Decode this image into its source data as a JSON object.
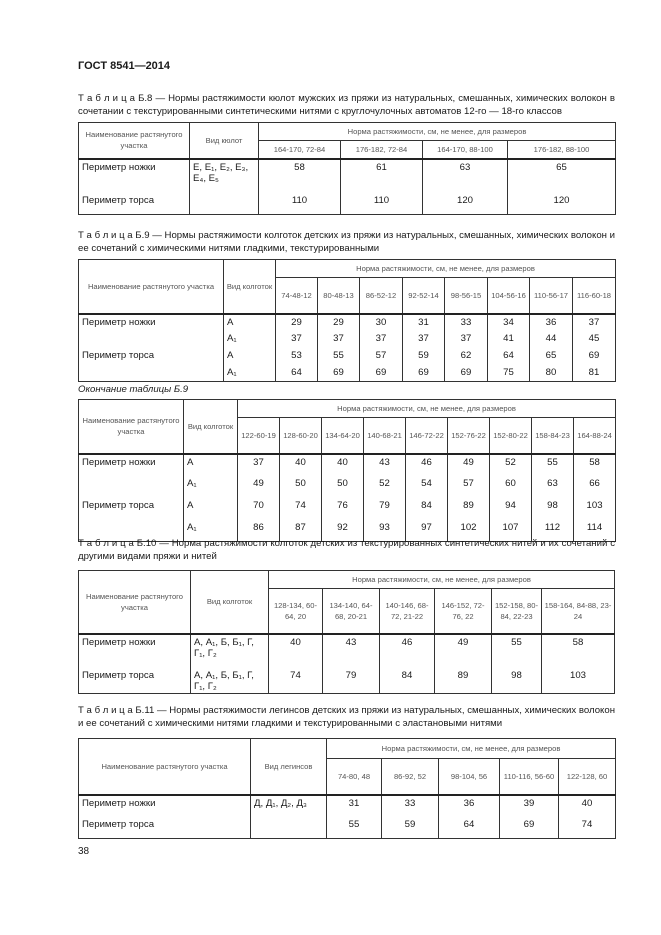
{
  "header": {
    "doc_id": "ГОСТ 8541—2014"
  },
  "page_number": "38",
  "tables": [
    {
      "caption": "Т а б л и ц а  Б.8 — Нормы растяжимости кюлот мужских из пряжи из натуральных, смешанных, химических волокон в сочетании с текстурированными синтетическими нитями с круглочулочных автоматов 12-го — 18-го классов",
      "col_name": "Наименование растянутого участка",
      "col_type": "Вид кюлот",
      "group": "Норма растяжимости, см, не менее, для размеров",
      "sizes": [
        "164-170, 72-84",
        "176-182, 72-84",
        "164-170, 88-100",
        "176-182, 88-100"
      ],
      "rows": [
        {
          "name": "Периметр ножки",
          "type": "Е, Е₁, Е₂, Е₃, Е₄, Е₅",
          "values": [
            "58",
            "61",
            "63",
            "65"
          ]
        },
        {
          "name": "Периметр торса",
          "type": "",
          "values": [
            "110",
            "110",
            "120",
            "120"
          ]
        }
      ]
    },
    {
      "caption": "Т а б л и ц а  Б.9 — Нормы растяжимости колготок детских из пряжи из натуральных, смешанных, химических волокон и ее сочетаний с химическими нитями гладкими, текстурированными",
      "col_name": "Наименование растянутого участка",
      "col_type": "Вид колготок",
      "group": "Норма растяжимости, см, не менее, для размеров",
      "sizes": [
        "74-48-12",
        "80-48-13",
        "86-52-12",
        "92-52-14",
        "98-56-15",
        "104-56-16",
        "110-56-17",
        "116-60-18"
      ],
      "rows": [
        {
          "name": "Периметр ножки",
          "type": "А",
          "values": [
            "29",
            "29",
            "30",
            "31",
            "33",
            "34",
            "36",
            "37"
          ]
        },
        {
          "name": "",
          "type": "А₁",
          "values": [
            "37",
            "37",
            "37",
            "37",
            "37",
            "41",
            "44",
            "45"
          ]
        },
        {
          "name": "Периметр торса",
          "type": "А",
          "values": [
            "53",
            "55",
            "57",
            "59",
            "62",
            "64",
            "65",
            "69"
          ]
        },
        {
          "name": "",
          "type": "А₁",
          "values": [
            "64",
            "69",
            "69",
            "69",
            "69",
            "75",
            "80",
            "81"
          ]
        }
      ]
    },
    {
      "continuation": "Окончание таблицы Б.9",
      "col_name": "Наименование растянутого участка",
      "col_type": "Вид колготок",
      "group": "Норма растяжимости, см, не менее, для размеров",
      "sizes": [
        "122-60-19",
        "128-60-20",
        "134-64-20",
        "140-68-21",
        "146-72-22",
        "152-76-22",
        "152-80-22",
        "158-84-23",
        "164-88-24"
      ],
      "rows": [
        {
          "name": "Периметр ножки",
          "type": "А",
          "values": [
            "37",
            "40",
            "40",
            "43",
            "46",
            "49",
            "52",
            "55",
            "58"
          ]
        },
        {
          "name": "",
          "type": "А₁",
          "values": [
            "49",
            "50",
            "50",
            "52",
            "54",
            "57",
            "60",
            "63",
            "66"
          ]
        },
        {
          "name": "Периметр торса",
          "type": "А",
          "values": [
            "70",
            "74",
            "76",
            "79",
            "84",
            "89",
            "94",
            "98",
            "103"
          ]
        },
        {
          "name": "",
          "type": "А₁",
          "values": [
            "86",
            "87",
            "92",
            "93",
            "97",
            "102",
            "107",
            "112",
            "114"
          ]
        }
      ]
    },
    {
      "caption": "Т а б л и ц а  Б.10 —  Норма растяжимости колготок детских из текстурированных синтетических нитей и их сочетаний с другими видами пряжи и нитей",
      "col_name": "Наименование растянутого участка",
      "col_type": "Вид колготок",
      "group": "Норма растяжимости, см, не менее, для размеров",
      "sizes": [
        "128-134, 60-64, 20",
        "134-140, 64-68, 20-21",
        "140-146, 68-72, 21-22",
        "146-152, 72-76, 22",
        "152-158, 80-84, 22-23",
        "158-164, 84-88, 23-24"
      ],
      "rows": [
        {
          "name": "Периметр ножки",
          "type": "А, А₁, Б, Б₁, Г, Г₁, Г₂",
          "values": [
            "40",
            "43",
            "46",
            "49",
            "55",
            "58"
          ]
        },
        {
          "name": "Периметр торса",
          "type": "А, А₁, Б, Б₁, Г, Г₁, Г₂",
          "values": [
            "74",
            "79",
            "84",
            "89",
            "98",
            "103"
          ]
        }
      ]
    },
    {
      "caption": "Т а б л и ц а  Б.11 —  Нормы растяжимости легинсов детских из пряжи из натуральных, смешанных, химических волокон и ее сочетаний с химическими нитями гладкими и текстурированными с эластановыми нитями",
      "col_name": "Наименование растянутого участка",
      "col_type": "Вид легинсов",
      "group": "Норма растяжимости, см, не менее, для размеров",
      "sizes": [
        "74-80, 48",
        "86-92, 52",
        "98-104, 56",
        "110-116, 56-60",
        "122-128, 60"
      ],
      "rows": [
        {
          "name": "Периметр ножки",
          "type": "Д, Д₁, Д₂, Д₃",
          "values": [
            "31",
            "33",
            "36",
            "39",
            "40"
          ]
        },
        {
          "name": "Периметр торса",
          "type": "",
          "values": [
            "55",
            "59",
            "64",
            "69",
            "74"
          ]
        }
      ]
    }
  ]
}
